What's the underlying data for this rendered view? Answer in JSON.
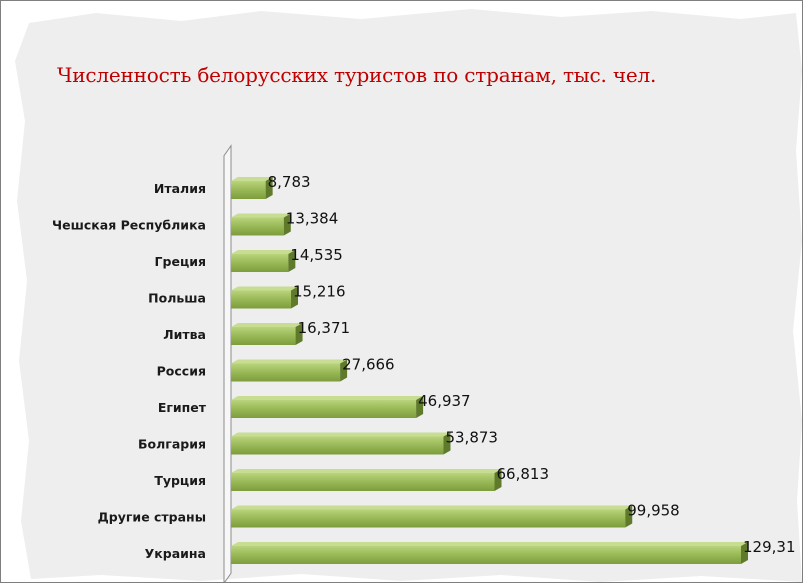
{
  "chart_data": {
    "type": "bar",
    "orientation": "horizontal",
    "title": "Численность белорусских туристов по странам, тыс. чел.",
    "categories": [
      "Италия",
      "Чешская Республика",
      "Греция",
      "Польша",
      "Литва",
      "Россия",
      "Египет",
      "Болгария",
      "Турция",
      "Другие страны",
      "Украина"
    ],
    "values": [
      8.783,
      13.384,
      14.535,
      15.216,
      16.371,
      27.666,
      46.937,
      53.873,
      66.813,
      99.958,
      129.31
    ],
    "value_labels": [
      "8,783",
      "13,384",
      "14,535",
      "15,216",
      "16,371",
      "27,666",
      "46,937",
      "53,873",
      "66,813",
      "99,958",
      "129,31"
    ],
    "xlim": [
      0,
      129.31
    ],
    "grid": false,
    "legend": "none",
    "colors": {
      "bar_top": "#b9d37c",
      "bar_mid": "#9bbb59",
      "bar_bottom": "#7d9c3c",
      "bar_end": "#5f7a2a",
      "title": "#c00000"
    }
  }
}
